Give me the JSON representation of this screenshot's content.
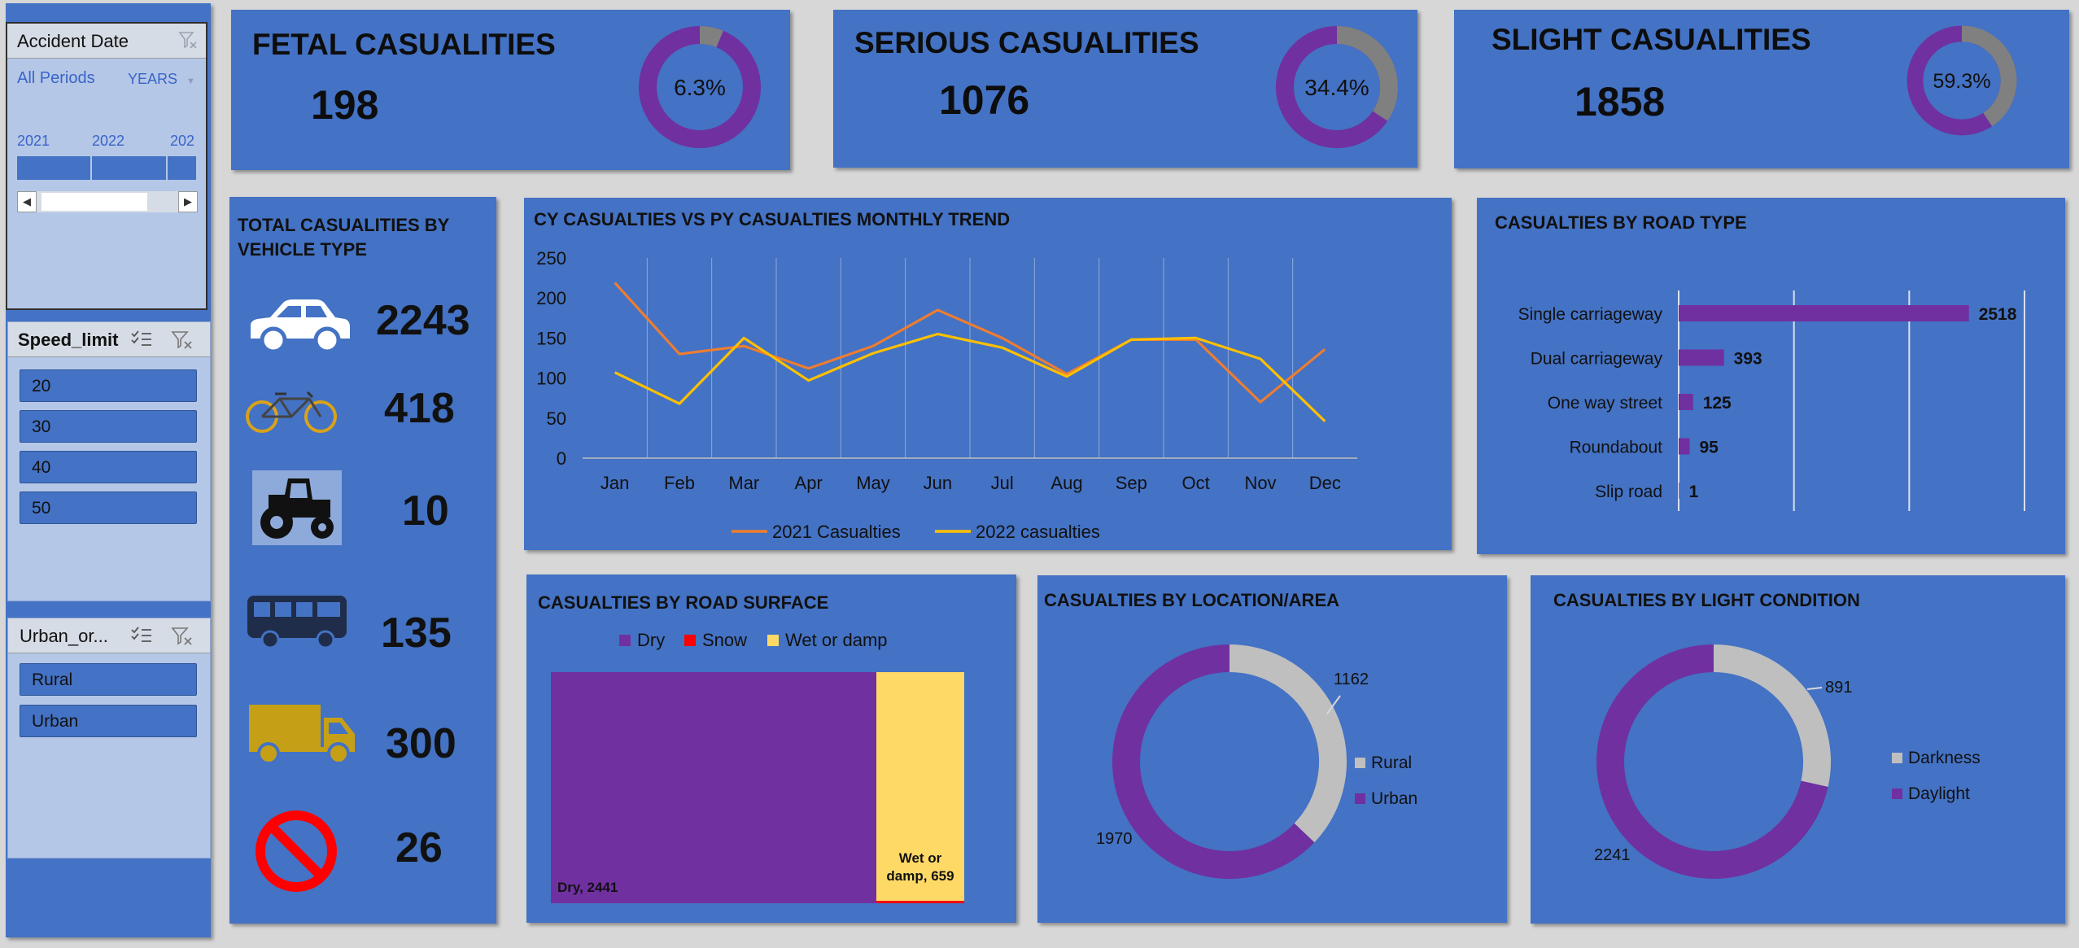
{
  "colors": {
    "panel": "#4472c4",
    "purple": "#7030a0",
    "gray": "#808080",
    "lightgray": "#bfbfbf",
    "orange": "#ed7d31",
    "yellow": "#ffc000",
    "wet": "#ffd966",
    "snow": "#ff0000"
  },
  "date_slicer": {
    "title": "Accident Date",
    "all_periods": "All Periods",
    "level": "YEARS",
    "years": [
      "2021",
      "2022",
      "202"
    ]
  },
  "speed_slicer": {
    "title": "Speed_limit",
    "items": [
      "20",
      "30",
      "40",
      "50"
    ]
  },
  "urban_slicer": {
    "title": "Urban_or...",
    "items": [
      "Rural",
      "Urban"
    ]
  },
  "kpis": [
    {
      "title": "FETAL CASUALITIES",
      "value": "198",
      "pct_label": "6.3%",
      "pct": 0.063
    },
    {
      "title": "SERIOUS CASUALITIES",
      "value": "1076",
      "pct_label": "34.4%",
      "pct": 0.344
    },
    {
      "title": "SLIGHT CASUALITIES",
      "value": "1858",
      "pct_label": "59.3%",
      "pct": 0.593
    }
  ],
  "vehicle": {
    "title_line1": "TOTAL CASUALITIES BY",
    "title_line2": "VEHICLE TYPE",
    "items": [
      {
        "icon": "car-icon",
        "value": "2243"
      },
      {
        "icon": "bicycle-icon",
        "value": "418"
      },
      {
        "icon": "tractor-icon",
        "value": "10"
      },
      {
        "icon": "bus-icon",
        "value": "135"
      },
      {
        "icon": "truck-icon",
        "value": "300"
      },
      {
        "icon": "prohibited-icon",
        "value": "26"
      }
    ]
  },
  "trend": {
    "title": "CY CASUALTIES VS PY CASUALTIES MONTHLY TREND"
  },
  "road_type": {
    "title": "CASUALTIES BY ROAD TYPE"
  },
  "surface": {
    "title": "CASUALTIES BY ROAD SURFACE"
  },
  "location": {
    "title": "CASUALTIES BY LOCATION/AREA"
  },
  "light": {
    "title": "CASUALTIES BY LIGHT CONDITION"
  },
  "chart_data": [
    {
      "type": "line",
      "title": "CY CASUALTIES VS PY CASUALTIES MONTHLY TREND",
      "categories": [
        "Jan",
        "Feb",
        "Mar",
        "Apr",
        "May",
        "Jun",
        "Jul",
        "Aug",
        "Sep",
        "Oct",
        "Nov",
        "Dec"
      ],
      "series": [
        {
          "name": "2021 Casualties",
          "color": "#ed7d31",
          "values": [
            219,
            130,
            140,
            112,
            140,
            185,
            150,
            105,
            148,
            148,
            70,
            136
          ]
        },
        {
          "name": "2022 casualties",
          "color": "#ffc000",
          "values": [
            107,
            68,
            150,
            97,
            131,
            155,
            138,
            102,
            148,
            150,
            124,
            46
          ]
        }
      ],
      "ylim": [
        0,
        250
      ],
      "yticks": [
        0,
        50,
        100,
        150,
        200,
        250
      ],
      "grid": "vertical",
      "legend": "bottom"
    },
    {
      "type": "bar",
      "orientation": "horizontal",
      "title": "CASUALTIES BY ROAD TYPE",
      "categories": [
        "Single carriageway",
        "Dual carriageway",
        "One way street",
        "Roundabout",
        "Slip road"
      ],
      "values": [
        2518,
        393,
        125,
        95,
        1
      ],
      "xlim": [
        0,
        3000
      ],
      "grid": "vertical",
      "legend": "none"
    },
    {
      "type": "bar",
      "orientation": "stacked",
      "title": "CASUALTIES BY ROAD SURFACE",
      "series": [
        {
          "name": "Dry",
          "value": 2441,
          "color": "#7030a0",
          "label": "Dry, 2441"
        },
        {
          "name": "Wet or damp",
          "value": 659,
          "color": "#ffd966",
          "label": "Wet or damp, 659"
        },
        {
          "name": "Snow",
          "value": 32,
          "color": "#ff0000",
          "label": ""
        }
      ],
      "legend": "top"
    },
    {
      "type": "pie",
      "subtype": "donut",
      "title": "CASUALTIES BY LOCATION/AREA",
      "slices": [
        {
          "name": "Rural",
          "value": 1162,
          "color": "#bfbfbf"
        },
        {
          "name": "Urban",
          "value": 1970,
          "color": "#7030a0"
        }
      ],
      "legend": "right"
    },
    {
      "type": "pie",
      "subtype": "donut",
      "title": "CASUALTIES BY LIGHT CONDITION",
      "slices": [
        {
          "name": "Darkness",
          "value": 891,
          "color": "#bfbfbf"
        },
        {
          "name": "Daylight",
          "value": 2241,
          "color": "#7030a0"
        }
      ],
      "legend": "right"
    }
  ]
}
